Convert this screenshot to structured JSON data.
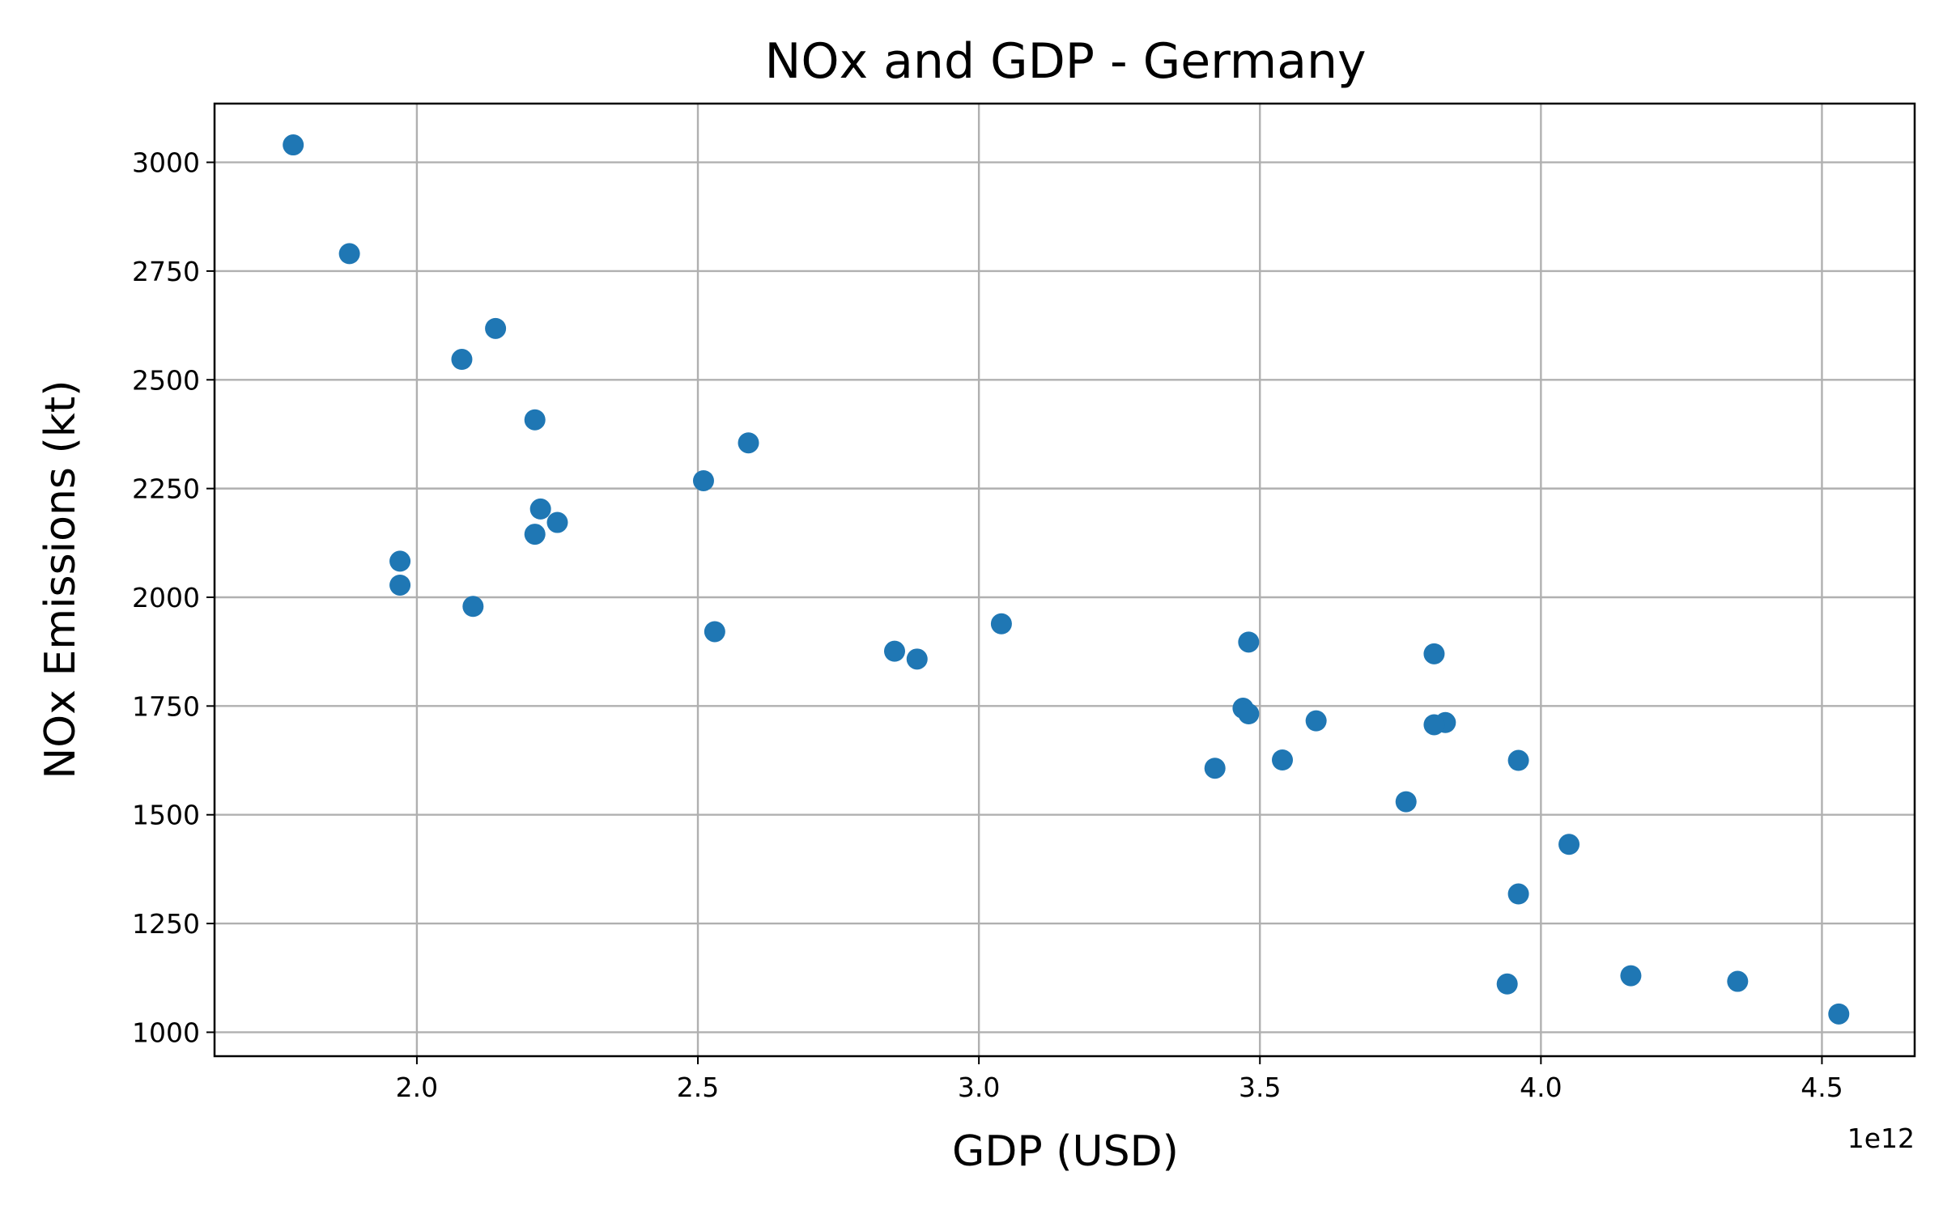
{
  "chart_data": {
    "type": "scatter",
    "title": "NOx and GDP - Germany",
    "xlabel": "GDP (USD)",
    "ylabel": "NOx Emissions (kt)",
    "x_offset_label": "1e12",
    "xlim": [
      1.64,
      4.665
    ],
    "ylim": [
      945,
      3135
    ],
    "xticks": [
      2.0,
      2.5,
      3.0,
      3.5,
      4.0,
      4.5
    ],
    "xtick_labels": [
      "2.0",
      "2.5",
      "3.0",
      "3.5",
      "4.0",
      "4.5"
    ],
    "yticks": [
      1000,
      1250,
      1500,
      1750,
      2000,
      2250,
      2500,
      2750,
      3000
    ],
    "ytick_labels": [
      "1000",
      "1250",
      "1500",
      "1750",
      "2000",
      "2250",
      "2500",
      "2750",
      "3000"
    ],
    "grid": true,
    "color": "#1f77b4",
    "x_unit_multiplier": 1000000000000.0,
    "points": [
      {
        "x": 1.78,
        "y": 3040
      },
      {
        "x": 1.88,
        "y": 2790
      },
      {
        "x": 2.14,
        "y": 2618
      },
      {
        "x": 2.08,
        "y": 2547
      },
      {
        "x": 2.21,
        "y": 2408
      },
      {
        "x": 2.59,
        "y": 2355
      },
      {
        "x": 2.51,
        "y": 2268
      },
      {
        "x": 2.22,
        "y": 2203
      },
      {
        "x": 2.25,
        "y": 2172
      },
      {
        "x": 2.21,
        "y": 2145
      },
      {
        "x": 1.97,
        "y": 2083
      },
      {
        "x": 1.97,
        "y": 2028
      },
      {
        "x": 2.1,
        "y": 1979
      },
      {
        "x": 3.04,
        "y": 1939
      },
      {
        "x": 2.53,
        "y": 1921
      },
      {
        "x": 3.48,
        "y": 1897
      },
      {
        "x": 2.85,
        "y": 1876
      },
      {
        "x": 2.89,
        "y": 1858
      },
      {
        "x": 3.81,
        "y": 1870
      },
      {
        "x": 3.47,
        "y": 1745
      },
      {
        "x": 3.48,
        "y": 1732
      },
      {
        "x": 3.6,
        "y": 1716
      },
      {
        "x": 3.83,
        "y": 1712
      },
      {
        "x": 3.81,
        "y": 1707
      },
      {
        "x": 3.54,
        "y": 1626
      },
      {
        "x": 3.96,
        "y": 1625
      },
      {
        "x": 3.42,
        "y": 1607
      },
      {
        "x": 3.76,
        "y": 1530
      },
      {
        "x": 4.05,
        "y": 1432
      },
      {
        "x": 3.96,
        "y": 1318
      },
      {
        "x": 4.16,
        "y": 1130
      },
      {
        "x": 4.35,
        "y": 1117
      },
      {
        "x": 3.94,
        "y": 1111
      },
      {
        "x": 4.53,
        "y": 1042
      }
    ]
  }
}
